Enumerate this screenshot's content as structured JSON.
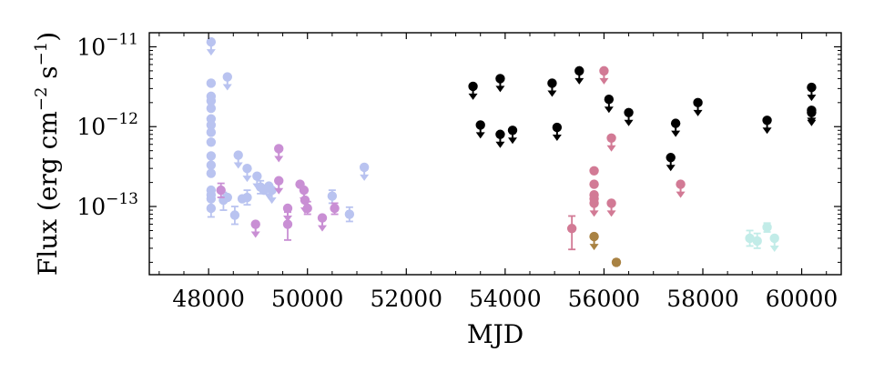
{
  "chart_data": {
    "type": "scatter",
    "xlabel": "MJD",
    "ylabel": "Flux (erg cm⁻² s⁻¹)",
    "ylabel_base": "Flux (erg cm",
    "ylabel_exp1": "−2",
    "ylabel_mid": " s",
    "ylabel_exp2": "−1",
    "ylabel_close": ")",
    "xlim": [
      46800,
      60800
    ],
    "ylim": [
      1.4e-14,
      1.5e-11
    ],
    "yscale": "log",
    "grid": false,
    "xticks": [
      48000,
      50000,
      52000,
      54000,
      56000,
      58000,
      60000
    ],
    "xtick_labels": [
      "48000",
      "50000",
      "52000",
      "54000",
      "56000",
      "58000",
      "60000"
    ],
    "yticks": [
      {
        "value": 1e-11,
        "base": "10",
        "exp": "−11"
      },
      {
        "value": 1e-12,
        "base": "10",
        "exp": "−12"
      },
      {
        "value": 1e-13,
        "base": "10",
        "exp": "−13"
      }
    ],
    "series": [
      {
        "color": "#b9c3f0",
        "points": [
          {
            "x": 48050,
            "y": 1.15e-11,
            "ul": true
          },
          {
            "x": 48050,
            "y": 3.5e-12
          },
          {
            "x": 48050,
            "y": 2.4e-12
          },
          {
            "x": 48050,
            "y": 2.1e-12
          },
          {
            "x": 48050,
            "y": 1.7e-12
          },
          {
            "x": 48050,
            "y": 1.25e-12
          },
          {
            "x": 48050,
            "y": 1.05e-12
          },
          {
            "x": 48050,
            "y": 8.5e-13
          },
          {
            "x": 48050,
            "y": 6.4e-13
          },
          {
            "x": 48050,
            "y": 4.3e-13
          },
          {
            "x": 48050,
            "y": 3.3e-13
          },
          {
            "x": 48050,
            "y": 2.6e-13
          },
          {
            "x": 48050,
            "y": 1.6e-13
          },
          {
            "x": 48050,
            "y": 1.4e-13
          },
          {
            "x": 48050,
            "y": 1.25e-13
          },
          {
            "x": 48050,
            "y": 9.5e-14,
            "err": [
              7.4e-14,
              1.2e-13
            ]
          },
          {
            "x": 48300,
            "y": 1.2e-13,
            "err": [
              9e-14,
              1.5e-13
            ]
          },
          {
            "x": 48380,
            "y": 4.2e-12,
            "ul": true
          },
          {
            "x": 48380,
            "y": 1.3e-13
          },
          {
            "x": 48530,
            "y": 7.8e-14,
            "err": [
              6e-14,
              1e-13
            ]
          },
          {
            "x": 48600,
            "y": 4.4e-13,
            "ul": true
          },
          {
            "x": 48680,
            "y": 1.25e-13
          },
          {
            "x": 48780,
            "y": 3e-13,
            "ul": true
          },
          {
            "x": 48780,
            "y": 1.3e-13,
            "err": [
              1.05e-13,
              1.6e-13
            ]
          },
          {
            "x": 48980,
            "y": 2.4e-13,
            "ul": true
          },
          {
            "x": 49050,
            "y": 1.75e-13,
            "err": [
              1.45e-13,
              2.1e-13
            ]
          },
          {
            "x": 49120,
            "y": 1.6e-13
          },
          {
            "x": 49220,
            "y": 1.8e-13,
            "ul": true
          },
          {
            "x": 49280,
            "y": 1.6e-13,
            "ul": true
          },
          {
            "x": 50500,
            "y": 1.35e-13,
            "err": [
              1.1e-13,
              1.6e-13
            ]
          },
          {
            "x": 50850,
            "y": 8e-14,
            "err": [
              6.5e-14,
              9.8e-14
            ]
          },
          {
            "x": 51150,
            "y": 3.1e-13,
            "ul": true
          }
        ]
      },
      {
        "color": "#c98fd4",
        "points": [
          {
            "x": 48250,
            "y": 1.6e-13,
            "err": [
              1.3e-13,
              1.95e-13
            ]
          },
          {
            "x": 48950,
            "y": 6e-14,
            "ul": true
          },
          {
            "x": 49420,
            "y": 5.3e-13,
            "ul": true
          },
          {
            "x": 49420,
            "y": 2.1e-13,
            "ul": true
          },
          {
            "x": 49600,
            "y": 9.5e-14,
            "ul": true
          },
          {
            "x": 49600,
            "y": 6e-14,
            "err": [
              3.8e-14,
              8.5e-14
            ]
          },
          {
            "x": 49850,
            "y": 1.9e-13
          },
          {
            "x": 49930,
            "y": 1.6e-13,
            "ul": true
          },
          {
            "x": 49950,
            "y": 1.2e-13,
            "ul": true
          },
          {
            "x": 50000,
            "y": 9.5e-14,
            "err": [
              8e-14,
              1.15e-13
            ]
          },
          {
            "x": 50300,
            "y": 7.2e-14,
            "ul": true
          },
          {
            "x": 50550,
            "y": 9.5e-14,
            "err": [
              8e-14,
              1.1e-13
            ]
          }
        ]
      },
      {
        "color": "#000000",
        "points": [
          {
            "x": 53350,
            "y": 3.2e-12,
            "ul": true
          },
          {
            "x": 53500,
            "y": 1.05e-12,
            "ul": true
          },
          {
            "x": 53900,
            "y": 4e-12,
            "ul": true
          },
          {
            "x": 53900,
            "y": 8e-13,
            "ul": true
          },
          {
            "x": 54150,
            "y": 9e-13,
            "ul": true
          },
          {
            "x": 54950,
            "y": 3.5e-12,
            "ul": true
          },
          {
            "x": 55050,
            "y": 9.8e-13,
            "ul": true
          },
          {
            "x": 55500,
            "y": 5e-12,
            "ul": true
          },
          {
            "x": 56100,
            "y": 2.2e-12,
            "ul": true
          },
          {
            "x": 56500,
            "y": 1.5e-12,
            "ul": true
          },
          {
            "x": 57350,
            "y": 4.1e-13,
            "ul": true
          },
          {
            "x": 57450,
            "y": 1.1e-12,
            "ul": true
          },
          {
            "x": 57900,
            "y": 2e-12,
            "ul": true
          },
          {
            "x": 59300,
            "y": 1.2e-12,
            "ul": true
          },
          {
            "x": 60200,
            "y": 3.1e-12,
            "ul": true
          },
          {
            "x": 60200,
            "y": 1.6e-12,
            "ul": true
          },
          {
            "x": 60200,
            "y": 1.5e-12,
            "ul": true
          }
        ]
      },
      {
        "color": "#d27a95",
        "points": [
          {
            "x": 55350,
            "y": 5.3e-14,
            "err": [
              2.9e-14,
              7.6e-14
            ]
          },
          {
            "x": 55800,
            "y": 2.8e-13
          },
          {
            "x": 55800,
            "y": 1.9e-13
          },
          {
            "x": 55800,
            "y": 1.4e-13
          },
          {
            "x": 55800,
            "y": 1.25e-13
          },
          {
            "x": 55800,
            "y": 1.1e-13,
            "ul": true
          },
          {
            "x": 56000,
            "y": 5e-12,
            "ul": true
          },
          {
            "x": 56150,
            "y": 7.2e-13,
            "ul": true
          },
          {
            "x": 56150,
            "y": 1.1e-13,
            "ul": true
          },
          {
            "x": 57550,
            "y": 1.9e-13,
            "ul": true
          }
        ]
      },
      {
        "color": "#a98243",
        "points": [
          {
            "x": 55800,
            "y": 4.2e-14,
            "ul": true
          },
          {
            "x": 56250,
            "y": 2e-14,
            "err": [
              1.85e-14,
              2.15e-14
            ]
          }
        ]
      },
      {
        "color": "#c2ece8",
        "points": [
          {
            "x": 58950,
            "y": 4e-14,
            "err": [
              3.2e-14,
              5e-14
            ]
          },
          {
            "x": 59100,
            "y": 3.7e-14,
            "err": [
              3e-14,
              4.6e-14
            ]
          },
          {
            "x": 59300,
            "y": 5.5e-14,
            "err": [
              4.8e-14,
              6.2e-14
            ]
          },
          {
            "x": 59450,
            "y": 4e-14,
            "ul": true
          }
        ]
      }
    ]
  }
}
